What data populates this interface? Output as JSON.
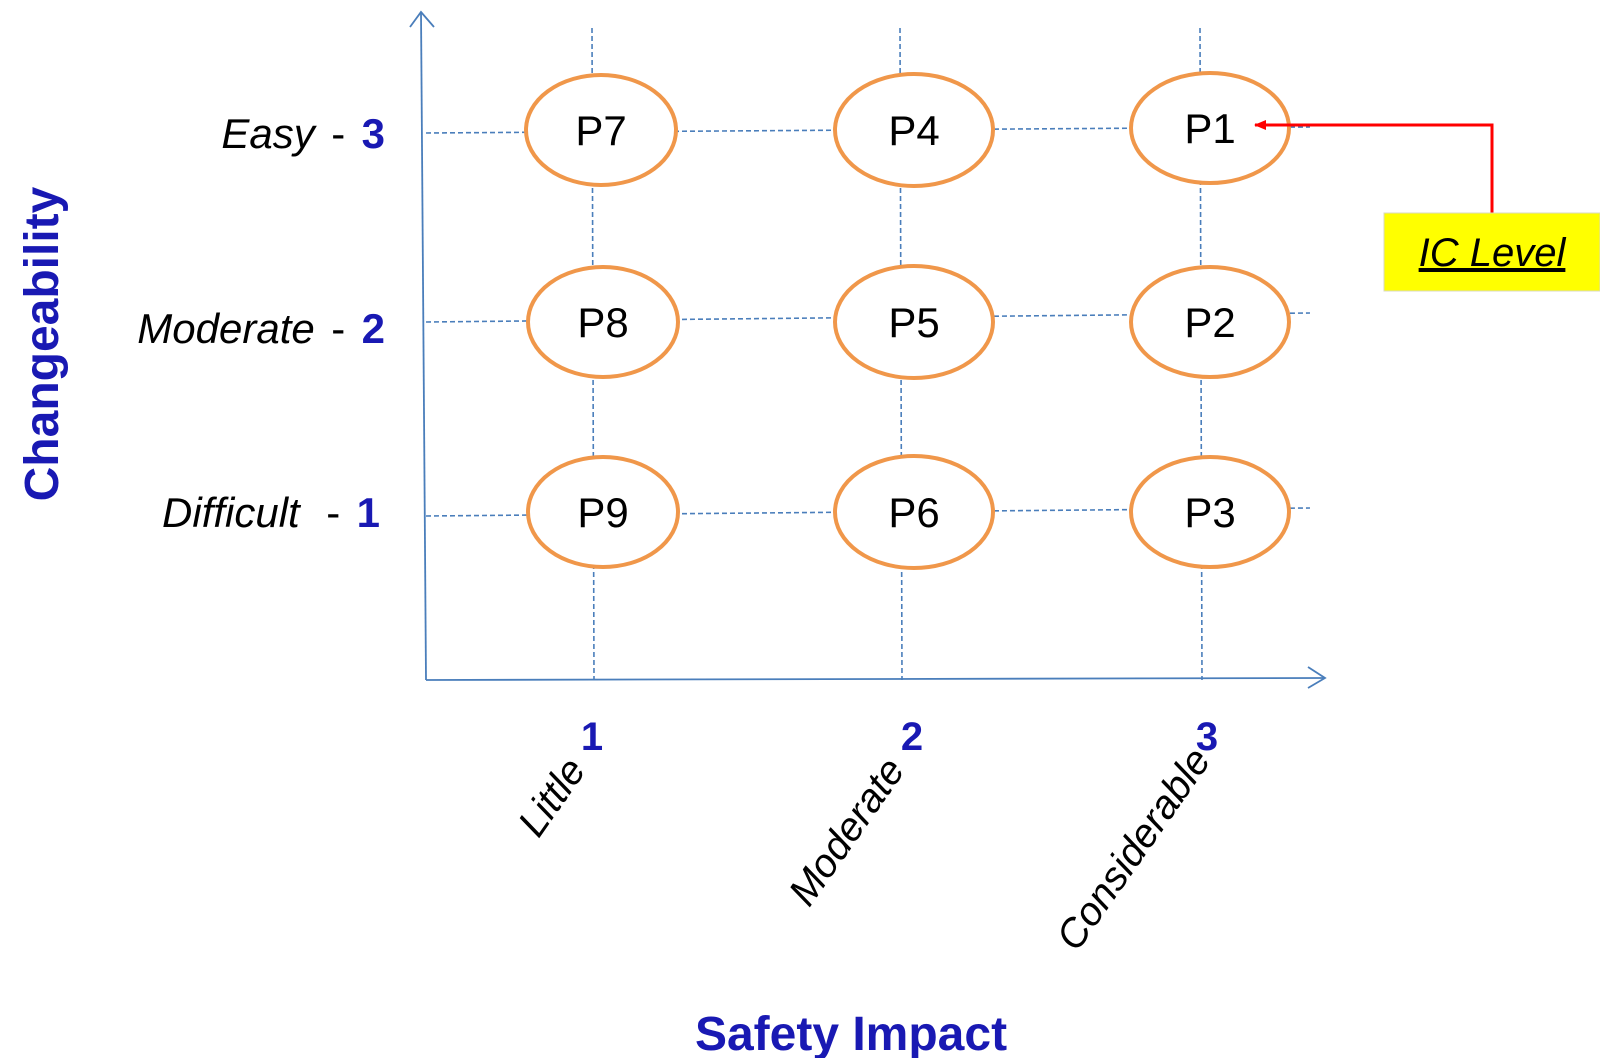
{
  "y_axis": {
    "title": "Changeability",
    "levels": [
      {
        "word": "Easy",
        "dash": "-",
        "num": "3"
      },
      {
        "word": "Moderate",
        "dash": "-",
        "num": "2"
      },
      {
        "word": "Difficult",
        "dash": "-",
        "num": "1"
      }
    ]
  },
  "x_axis": {
    "title": "Safety Impact",
    "levels": [
      {
        "num": "1",
        "word": "Little"
      },
      {
        "num": "2",
        "word": "Moderate"
      },
      {
        "num": "3",
        "word": "Considerable"
      }
    ]
  },
  "nodes": [
    [
      "P7",
      "P4",
      "P1"
    ],
    [
      "P8",
      "P5",
      "P2"
    ],
    [
      "P9",
      "P6",
      "P3"
    ]
  ],
  "callout": {
    "label": "IC Level",
    "target": "P1",
    "line_color": "#ff0000",
    "background": "#ffff00"
  },
  "colors": {
    "grid": "#4a7ebb",
    "node_border": "#f0974a",
    "accent_text": "#1919b3"
  }
}
